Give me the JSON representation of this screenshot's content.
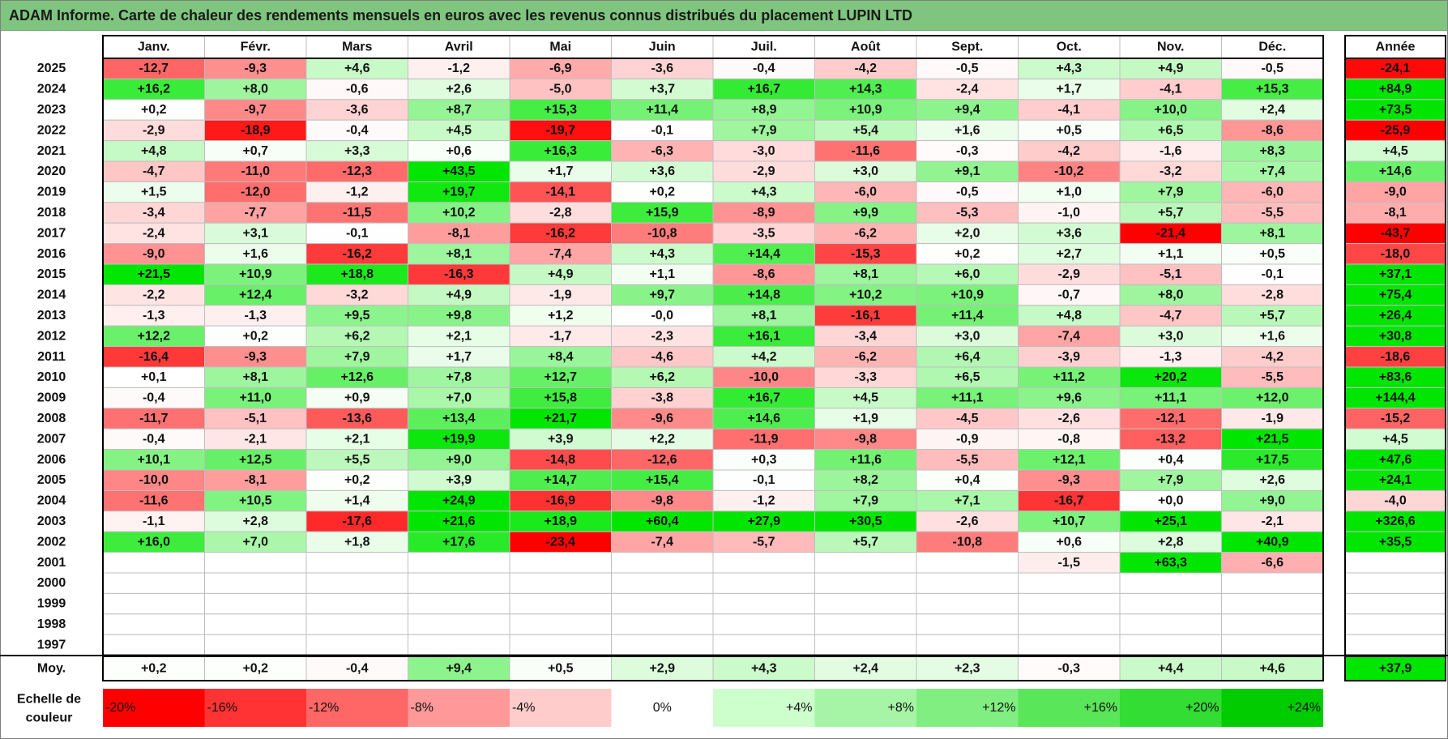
{
  "title": "ADAM Informe. Carte de chaleur des rendements mensuels en euros avec les revenus connus distribués du placement LUPIN LTD",
  "chart_data": {
    "type": "heatmap",
    "months": [
      "Janv.",
      "Févr.",
      "Mars",
      "Avril",
      "Mai",
      "Juin",
      "Juil.",
      "Août",
      "Sept.",
      "Oct.",
      "Nov.",
      "Déc."
    ],
    "year_header": "Année",
    "rows": [
      {
        "year": "2025",
        "values": [
          "-12,7",
          "-9,3",
          "+4,6",
          "-1,2",
          "-6,9",
          "-3,6",
          "-0,4",
          "-4,2",
          "-0,5",
          "+4,3",
          "+4,9",
          "-0,5"
        ],
        "annual": "-24,1"
      },
      {
        "year": "2024",
        "values": [
          "+16,2",
          "+8,0",
          "-0,6",
          "+2,6",
          "-5,0",
          "+3,7",
          "+16,7",
          "+14,3",
          "-2,4",
          "+1,7",
          "-4,1",
          "+15,3"
        ],
        "annual": "+84,9"
      },
      {
        "year": "2023",
        "values": [
          "+0,2",
          "-9,7",
          "-3,6",
          "+8,7",
          "+15,3",
          "+11,4",
          "+8,9",
          "+10,9",
          "+9,4",
          "-4,1",
          "+10,0",
          "+2,4"
        ],
        "annual": "+73,5"
      },
      {
        "year": "2022",
        "values": [
          "-2,9",
          "-18,9",
          "-0,4",
          "+4,5",
          "-19,7",
          "-0,1",
          "+7,9",
          "+5,4",
          "+1,6",
          "+0,5",
          "+6,5",
          "-8,6"
        ],
        "annual": "-25,9"
      },
      {
        "year": "2021",
        "values": [
          "+4,8",
          "+0,7",
          "+3,3",
          "+0,6",
          "+16,3",
          "-6,3",
          "-3,0",
          "-11,6",
          "-0,3",
          "-4,2",
          "-1,6",
          "+8,3"
        ],
        "annual": "+4,5"
      },
      {
        "year": "2020",
        "values": [
          "-4,7",
          "-11,0",
          "-12,3",
          "+43,5",
          "+1,7",
          "+3,6",
          "-2,9",
          "+3,0",
          "+9,1",
          "-10,2",
          "-3,2",
          "+7,4"
        ],
        "annual": "+14,6"
      },
      {
        "year": "2019",
        "values": [
          "+1,5",
          "-12,0",
          "-1,2",
          "+19,7",
          "-14,1",
          "+0,2",
          "+4,3",
          "-6,0",
          "-0,5",
          "+1,0",
          "+7,9",
          "-6,0"
        ],
        "annual": "-9,0"
      },
      {
        "year": "2018",
        "values": [
          "-3,4",
          "-7,7",
          "-11,5",
          "+10,2",
          "-2,8",
          "+15,9",
          "-8,9",
          "+9,9",
          "-5,3",
          "-1,0",
          "+5,7",
          "-5,5"
        ],
        "annual": "-8,1"
      },
      {
        "year": "2017",
        "values": [
          "-2,4",
          "+3,1",
          "-0,1",
          "-8,1",
          "-16,2",
          "-10,8",
          "-3,5",
          "-6,2",
          "+2,0",
          "+3,6",
          "-21,4",
          "+8,1"
        ],
        "annual": "-43,7"
      },
      {
        "year": "2016",
        "values": [
          "-9,0",
          "+1,6",
          "-16,2",
          "+8,1",
          "-7,4",
          "+4,3",
          "+14,4",
          "-15,3",
          "+0,2",
          "+2,7",
          "+1,1",
          "+0,5"
        ],
        "annual": "-18,0"
      },
      {
        "year": "2015",
        "values": [
          "+21,5",
          "+10,9",
          "+18,8",
          "-16,3",
          "+4,9",
          "+1,1",
          "-8,6",
          "+8,1",
          "+6,0",
          "-2,9",
          "-5,1",
          "-0,1"
        ],
        "annual": "+37,1"
      },
      {
        "year": "2014",
        "values": [
          "-2,2",
          "+12,4",
          "-3,2",
          "+4,9",
          "-1,9",
          "+9,7",
          "+14,8",
          "+10,2",
          "+10,9",
          "-0,7",
          "+8,0",
          "-2,8"
        ],
        "annual": "+75,4"
      },
      {
        "year": "2013",
        "values": [
          "-1,3",
          "-1,3",
          "+9,5",
          "+9,8",
          "+1,2",
          "-0,0",
          "+8,1",
          "-16,1",
          "+11,4",
          "+4,8",
          "-4,7",
          "+5,7"
        ],
        "annual": "+26,4"
      },
      {
        "year": "2012",
        "values": [
          "+12,2",
          "+0,2",
          "+6,2",
          "+2,1",
          "-1,7",
          "-2,3",
          "+16,1",
          "-3,4",
          "+3,0",
          "-7,4",
          "+3,0",
          "+1,6"
        ],
        "annual": "+30,8"
      },
      {
        "year": "2011",
        "values": [
          "-16,4",
          "-9,3",
          "+7,9",
          "+1,7",
          "+8,4",
          "-4,6",
          "+4,2",
          "-6,2",
          "+6,4",
          "-3,9",
          "-1,3",
          "-4,2"
        ],
        "annual": "-18,6"
      },
      {
        "year": "2010",
        "values": [
          "+0,1",
          "+8,1",
          "+12,6",
          "+7,8",
          "+12,7",
          "+6,2",
          "-10,0",
          "-3,3",
          "+6,5",
          "+11,2",
          "+20,2",
          "-5,5"
        ],
        "annual": "+83,6"
      },
      {
        "year": "2009",
        "values": [
          "-0,4",
          "+11,0",
          "+0,9",
          "+7,0",
          "+15,8",
          "-3,8",
          "+16,7",
          "+4,5",
          "+11,1",
          "+9,6",
          "+11,1",
          "+12,0"
        ],
        "annual": "+144,4"
      },
      {
        "year": "2008",
        "values": [
          "-11,7",
          "-5,1",
          "-13,6",
          "+13,4",
          "+21,7",
          "-9,6",
          "+14,6",
          "+1,9",
          "-4,5",
          "-2,6",
          "-12,1",
          "-1,9"
        ],
        "annual": "-15,2"
      },
      {
        "year": "2007",
        "values": [
          "-0,4",
          "-2,1",
          "+2,1",
          "+19,9",
          "+3,9",
          "+2,2",
          "-11,9",
          "-9,8",
          "-0,9",
          "-0,8",
          "-13,2",
          "+21,5"
        ],
        "annual": "+4,5"
      },
      {
        "year": "2006",
        "values": [
          "+10,1",
          "+12,5",
          "+5,5",
          "+9,0",
          "-14,8",
          "-12,6",
          "+0,3",
          "+11,6",
          "-5,5",
          "+12,1",
          "+0,4",
          "+17,5"
        ],
        "annual": "+47,6"
      },
      {
        "year": "2005",
        "values": [
          "-10,0",
          "-8,1",
          "+0,2",
          "+3,9",
          "+14,7",
          "+15,4",
          "-0,1",
          "+8,2",
          "+0,4",
          "-9,3",
          "+7,9",
          "+2,6"
        ],
        "annual": "+24,1"
      },
      {
        "year": "2004",
        "values": [
          "-11,6",
          "+10,5",
          "+1,4",
          "+24,9",
          "-16,9",
          "-9,8",
          "-1,2",
          "+7,9",
          "+7,1",
          "-16,7",
          "+0,0",
          "+9,0"
        ],
        "annual": "-4,0"
      },
      {
        "year": "2003",
        "values": [
          "-1,1",
          "+2,8",
          "-17,6",
          "+21,6",
          "+18,9",
          "+60,4",
          "+27,9",
          "+30,5",
          "-2,6",
          "+10,7",
          "+25,1",
          "-2,1"
        ],
        "annual": "+326,6"
      },
      {
        "year": "2002",
        "values": [
          "+16,0",
          "+7,0",
          "+1,8",
          "+17,6",
          "-23,4",
          "-7,4",
          "-5,7",
          "+5,7",
          "-10,8",
          "+0,6",
          "+2,8",
          "+40,9"
        ],
        "annual": "+35,5"
      },
      {
        "year": "2001",
        "values": [
          "",
          "",
          "",
          "",
          "",
          "",
          "",
          "",
          "",
          "-1,5",
          "+63,3",
          "-6,6"
        ],
        "annual": ""
      },
      {
        "year": "2000",
        "values": [
          "",
          "",
          "",
          "",
          "",
          "",
          "",
          "",
          "",
          "",
          "",
          ""
        ],
        "annual": ""
      },
      {
        "year": "1999",
        "values": [
          "",
          "",
          "",
          "",
          "",
          "",
          "",
          "",
          "",
          "",
          "",
          ""
        ],
        "annual": ""
      },
      {
        "year": "1998",
        "values": [
          "",
          "",
          "",
          "",
          "",
          "",
          "",
          "",
          "",
          "",
          "",
          ""
        ],
        "annual": ""
      },
      {
        "year": "1997",
        "values": [
          "",
          "",
          "",
          "",
          "",
          "",
          "",
          "",
          "",
          "",
          "",
          ""
        ],
        "annual": ""
      }
    ],
    "average": {
      "label": "Moy.",
      "values": [
        "+0,2",
        "+0,2",
        "-0,4",
        "+9,4",
        "+0,5",
        "+2,9",
        "+4,3",
        "+2,4",
        "+2,3",
        "-0,3",
        "+4,4",
        "+4,6"
      ],
      "annual": "+37,9"
    },
    "scale": {
      "label_line1": "Echelle de",
      "label_line2": "couleur",
      "steps": [
        {
          "label": "-20%",
          "value": -20,
          "color": "#ff0000"
        },
        {
          "label": "-16%",
          "value": -16,
          "color": "#ff3333"
        },
        {
          "label": "-12%",
          "value": -12,
          "color": "#ff6666"
        },
        {
          "label": "-8%",
          "value": -8,
          "color": "#ff9999"
        },
        {
          "label": "-4%",
          "value": -4,
          "color": "#ffcccc"
        },
        {
          "label": "0%",
          "value": 0,
          "color": "#ffffff"
        },
        {
          "label": "+4%",
          "value": 4,
          "color": "#ccffcc"
        },
        {
          "label": "+8%",
          "value": 8,
          "color": "#a6f5a6"
        },
        {
          "label": "+12%",
          "value": 12,
          "color": "#80ee80"
        },
        {
          "label": "+16%",
          "value": 16,
          "color": "#59e659"
        },
        {
          "label": "+20%",
          "value": 20,
          "color": "#33dd33"
        },
        {
          "label": "+24%",
          "value": 24,
          "color": "#00cc00"
        }
      ]
    }
  }
}
